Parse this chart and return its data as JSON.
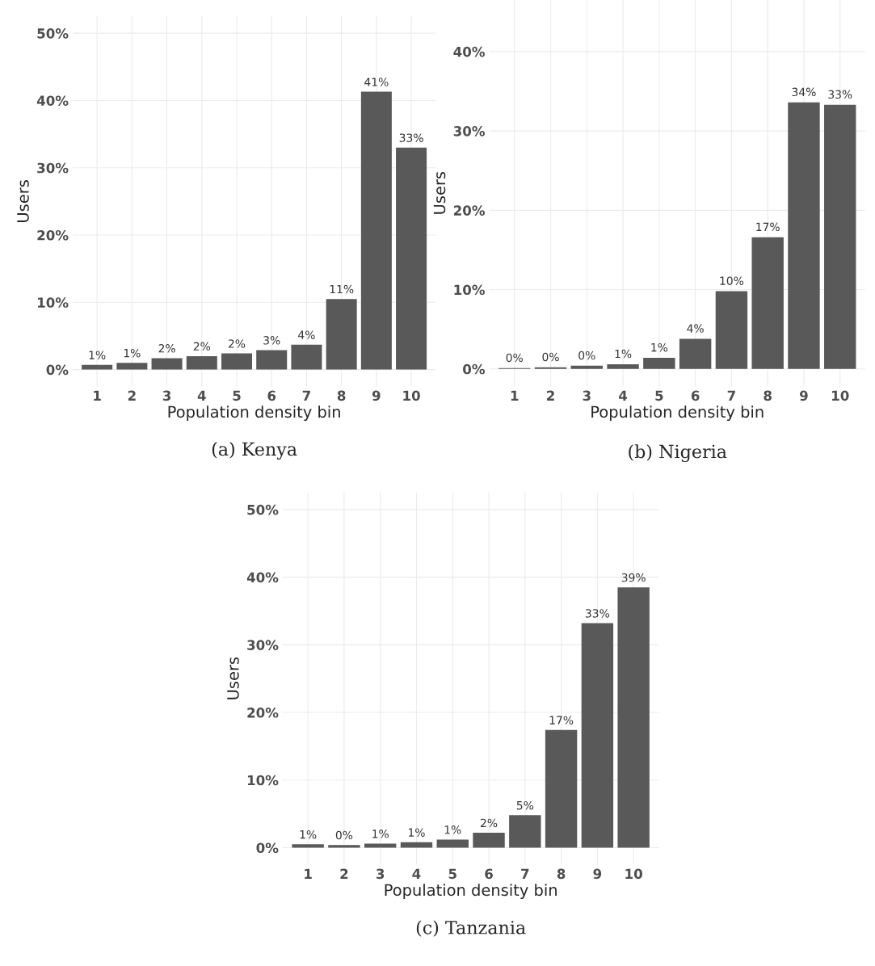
{
  "chart_data": [
    {
      "type": "bar",
      "xlabel": "Population density bin",
      "ylabel": "Users",
      "categories": [
        "1",
        "2",
        "3",
        "4",
        "5",
        "6",
        "7",
        "8",
        "9",
        "10"
      ],
      "color": "#595959",
      "values": [
        0.7,
        1.0,
        1.7,
        2.0,
        2.4,
        2.9,
        3.7,
        10.5,
        41.3,
        33.0
      ],
      "value_labels": [
        "1%",
        "1%",
        "2%",
        "2%",
        "2%",
        "3%",
        "4%",
        "11%",
        "41%",
        "33%"
      ],
      "ylim": [
        -2.5,
        52.5
      ],
      "yticks": [
        {
          "value": 0,
          "label": "0%"
        },
        {
          "value": 10,
          "label": "10%"
        },
        {
          "value": 20,
          "label": "20%"
        },
        {
          "value": 30,
          "label": "30%"
        },
        {
          "value": 40,
          "label": "40%"
        },
        {
          "value": 50,
          "label": "50%"
        }
      ],
      "grid": true,
      "annotations": [
        "(a) Kenya"
      ]
    },
    {
      "type": "bar",
      "xlabel": "Population density bin",
      "ylabel": "Users",
      "categories": [
        "1",
        "2",
        "3",
        "4",
        "5",
        "6",
        "7",
        "8",
        "9",
        "10"
      ],
      "color": "#595959",
      "values": [
        0.1,
        0.2,
        0.4,
        0.6,
        1.4,
        3.8,
        9.8,
        16.6,
        33.6,
        33.3
      ],
      "value_labels": [
        "0%",
        "0%",
        "0%",
        "1%",
        "1%",
        "4%",
        "10%",
        "17%",
        "34%",
        "33%"
      ],
      "ylim": [
        -2.2,
        46.5
      ],
      "yticks": [
        {
          "value": 0,
          "label": "0%"
        },
        {
          "value": 10,
          "label": "10%"
        },
        {
          "value": 20,
          "label": "20%"
        },
        {
          "value": 30,
          "label": "30%"
        },
        {
          "value": 40,
          "label": "40%"
        }
      ],
      "grid": true,
      "annotations": [
        "(b) Nigeria"
      ]
    },
    {
      "type": "bar",
      "xlabel": "Population density bin",
      "ylabel": "Users",
      "categories": [
        "1",
        "2",
        "3",
        "4",
        "5",
        "6",
        "7",
        "8",
        "9",
        "10"
      ],
      "color": "#595959",
      "values": [
        0.5,
        0.4,
        0.6,
        0.8,
        1.2,
        2.2,
        4.8,
        17.4,
        33.2,
        38.5
      ],
      "value_labels": [
        "1%",
        "0%",
        "1%",
        "1%",
        "1%",
        "2%",
        "5%",
        "17%",
        "33%",
        "39%"
      ],
      "ylim": [
        -2.5,
        52.5
      ],
      "yticks": [
        {
          "value": 0,
          "label": "0%"
        },
        {
          "value": 10,
          "label": "10%"
        },
        {
          "value": 20,
          "label": "20%"
        },
        {
          "value": 30,
          "label": "30%"
        },
        {
          "value": 40,
          "label": "40%"
        },
        {
          "value": 50,
          "label": "50%"
        }
      ],
      "grid": true,
      "annotations": [
        "(c) Tanzania"
      ]
    }
  ]
}
